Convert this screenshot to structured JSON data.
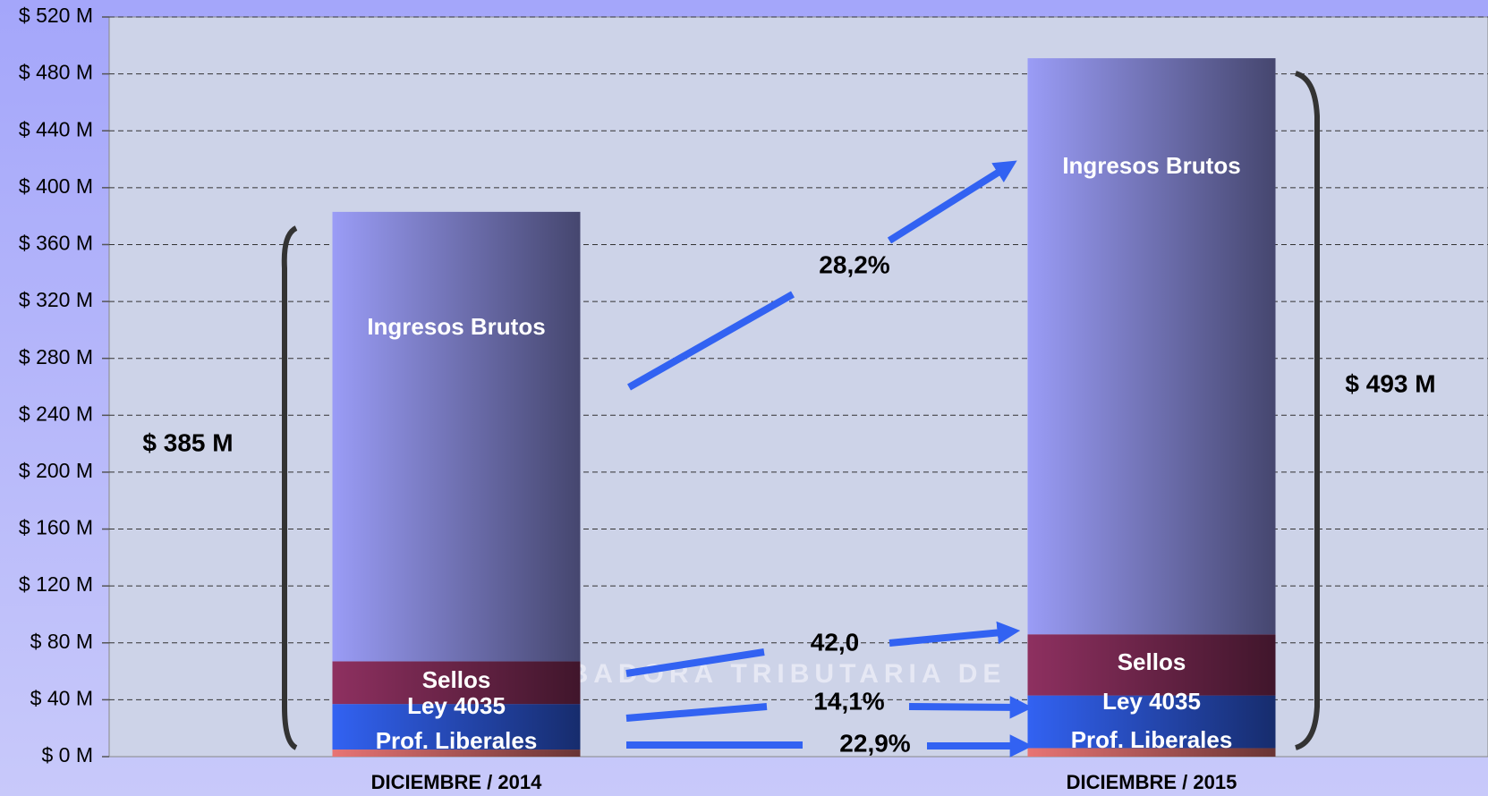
{
  "chart_data": {
    "type": "stacked_bar",
    "categories": [
      "DICIEMBRE / 2014",
      "DICIEMBRE / 2015"
    ],
    "series": [
      {
        "name": "Prof. Liberales",
        "color": "#e87474",
        "values": [
          5,
          6
        ]
      },
      {
        "name": "Ley 4035",
        "color": "#3262f2",
        "values": [
          32,
          37
        ]
      },
      {
        "name": "Sellos",
        "color": "#8e3060",
        "values": [
          30,
          43
        ]
      },
      {
        "name": "Ingresos Brutos",
        "color": "#9a9cf6",
        "values": [
          316,
          405
        ]
      }
    ],
    "ylim": [
      0,
      520
    ],
    "yticks": [
      {
        "value": 0,
        "label": "$ 0 M"
      },
      {
        "value": 40,
        "label": "$ 40 M"
      },
      {
        "value": 80,
        "label": "$ 80 M"
      },
      {
        "value": 120,
        "label": "$ 120 M"
      },
      {
        "value": 160,
        "label": "$ 160 M"
      },
      {
        "value": 200,
        "label": "$ 200 M"
      },
      {
        "value": 240,
        "label": "$ 240 M"
      },
      {
        "value": 280,
        "label": "$ 280 M"
      },
      {
        "value": 320,
        "label": "$ 320 M"
      },
      {
        "value": 360,
        "label": "$ 360 M"
      },
      {
        "value": 400,
        "label": "$ 400 M"
      },
      {
        "value": 440,
        "label": "$ 440 M"
      },
      {
        "value": 480,
        "label": "$ 480 M"
      },
      {
        "value": 520,
        "label": "$ 520 M"
      }
    ],
    "grid": true,
    "annotations": [
      "28,2%",
      "42,0",
      "14,1%",
      "22,9%",
      "$ 385 M",
      "$ 493 M"
    ],
    "watermark": "BADORA TRIBUTARIA DE"
  }
}
